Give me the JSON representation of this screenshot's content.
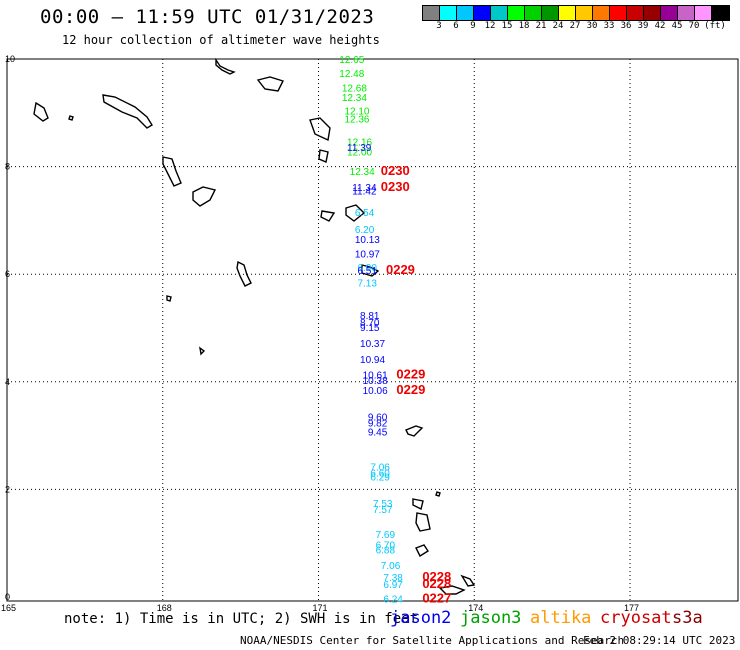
{
  "header": {
    "title": "00:00 – 11:59 UTC 01/31/2023",
    "subtitle": "12 hour collection of altimeter wave heights"
  },
  "colorbar": {
    "colors": [
      "#808080",
      "#00ffff",
      "#00c8ff",
      "#0000ff",
      "#00c8c8",
      "#00ff00",
      "#00d200",
      "#009600",
      "#ffff00",
      "#ffc800",
      "#ff7800",
      "#ff0000",
      "#c80000",
      "#960000",
      "#960096",
      "#c864c8",
      "#ff96ff",
      "#000000"
    ],
    "labels": [
      "3",
      "6",
      "9",
      "12",
      "15",
      "18",
      "21",
      "24",
      "27",
      "30",
      "33",
      "36",
      "39",
      "42",
      "45",
      "70",
      "(ft)"
    ]
  },
  "map": {
    "x_axis_labels": [
      "165",
      "168",
      "171",
      "174",
      "177"
    ],
    "y_axis_labels": [
      "10",
      "8",
      "6",
      "4",
      "2",
      "0"
    ],
    "observations": [
      {
        "v": "12.65",
        "x": 171.4,
        "y": 9.93,
        "c": "#00ee00"
      },
      {
        "v": "12.48",
        "x": 171.4,
        "y": 9.67,
        "c": "#00ee00"
      },
      {
        "v": "12.68",
        "x": 171.45,
        "y": 9.4,
        "c": "#00ee00"
      },
      {
        "v": "12.34",
        "x": 171.45,
        "y": 9.22,
        "c": "#00ee00"
      },
      {
        "v": "12.10",
        "x": 171.5,
        "y": 8.97,
        "c": "#00ee00"
      },
      {
        "v": "12.36",
        "x": 171.5,
        "y": 8.82,
        "c": "#00ee00"
      },
      {
        "v": "12.16",
        "x": 171.55,
        "y": 8.39,
        "c": "#00ee00"
      },
      {
        "v": "12.00",
        "x": 171.55,
        "y": 8.21,
        "c": "#00ee00"
      },
      {
        "v": "11.39",
        "x": 171.55,
        "y": 8.29,
        "c": "#0000ff"
      },
      {
        "v": "12.34",
        "x": 171.6,
        "y": 7.84,
        "c": "#00ee00"
      },
      {
        "v": "11.34",
        "x": 171.65,
        "y": 7.55,
        "c": "#0000ff"
      },
      {
        "v": "11.42",
        "x": 171.65,
        "y": 7.48,
        "c": "#0000ff"
      },
      {
        "v": "6.54",
        "x": 171.7,
        "y": 7.08,
        "c": "#00c8ff"
      },
      {
        "v": "6.20",
        "x": 171.7,
        "y": 6.77,
        "c": "#00c8ff"
      },
      {
        "v": "10.13",
        "x": 171.7,
        "y": 6.58,
        "c": "#0000ff"
      },
      {
        "v": "10.97",
        "x": 171.7,
        "y": 6.31,
        "c": "#0000ff"
      },
      {
        "v": "6.90",
        "x": 171.75,
        "y": 6.06,
        "c": "#00c8ff"
      },
      {
        "v": "6.51",
        "x": 171.75,
        "y": 6.0,
        "c": "#0000ff"
      },
      {
        "v": "7.13",
        "x": 171.75,
        "y": 5.77,
        "c": "#00c8ff"
      },
      {
        "v": "8.81",
        "x": 171.8,
        "y": 5.17,
        "c": "#0000ff"
      },
      {
        "v": "8.70",
        "x": 171.8,
        "y": 5.04,
        "c": "#0000ff"
      },
      {
        "v": "9.15",
        "x": 171.8,
        "y": 4.94,
        "c": "#0000ff"
      },
      {
        "v": "10.37",
        "x": 171.8,
        "y": 4.65,
        "c": "#0000ff"
      },
      {
        "v": "10.94",
        "x": 171.8,
        "y": 4.35,
        "c": "#0000ff"
      },
      {
        "v": "10.61",
        "x": 171.85,
        "y": 4.06,
        "c": "#0000ff"
      },
      {
        "v": "10.38",
        "x": 171.85,
        "y": 3.96,
        "c": "#0000ff"
      },
      {
        "v": "10.06",
        "x": 171.85,
        "y": 3.77,
        "c": "#0000ff"
      },
      {
        "v": "9.60",
        "x": 171.95,
        "y": 3.28,
        "c": "#0000ff"
      },
      {
        "v": "9.82",
        "x": 171.95,
        "y": 3.17,
        "c": "#0000ff"
      },
      {
        "v": "9.45",
        "x": 171.95,
        "y": 3.0,
        "c": "#0000ff"
      },
      {
        "v": "7.06",
        "x": 172.0,
        "y": 2.35,
        "c": "#00c8ff"
      },
      {
        "v": "6.60",
        "x": 172.0,
        "y": 2.24,
        "c": "#00c8ff"
      },
      {
        "v": "6.29",
        "x": 172.0,
        "y": 2.17,
        "c": "#00c8ff"
      },
      {
        "v": "7.53",
        "x": 172.05,
        "y": 1.67,
        "c": "#00c8ff"
      },
      {
        "v": "7.57",
        "x": 172.05,
        "y": 1.56,
        "c": "#00c8ff"
      },
      {
        "v": "7.69",
        "x": 172.1,
        "y": 1.1,
        "c": "#00c8ff"
      },
      {
        "v": "6.70",
        "x": 172.1,
        "y": 0.9,
        "c": "#00c8ff"
      },
      {
        "v": "6.88",
        "x": 172.1,
        "y": 0.81,
        "c": "#00c8ff"
      },
      {
        "v": "7.06",
        "x": 172.2,
        "y": 0.52,
        "c": "#00c8ff"
      },
      {
        "v": "7.38",
        "x": 172.25,
        "y": 0.3,
        "c": "#00c8ff"
      },
      {
        "v": "6.97",
        "x": 172.25,
        "y": 0.17,
        "c": "#00c8ff"
      },
      {
        "v": "6.24",
        "x": 172.25,
        "y": -0.1,
        "c": "#00c8ff"
      }
    ],
    "time_tags": [
      {
        "v": "0230",
        "x": 172.2,
        "y": 7.84,
        "c": "#ee0000"
      },
      {
        "v": "0230",
        "x": 172.2,
        "y": 7.55,
        "c": "#ee0000"
      },
      {
        "v": "0229",
        "x": 172.3,
        "y": 6.0,
        "c": "#ee0000"
      },
      {
        "v": "0229",
        "x": 172.5,
        "y": 4.06,
        "c": "#ee0000"
      },
      {
        "v": "0229",
        "x": 172.5,
        "y": 3.77,
        "c": "#ee0000"
      },
      {
        "v": "0228",
        "x": 173.0,
        "y": 0.3,
        "c": "#ee0000"
      },
      {
        "v": "0228",
        "x": 173.0,
        "y": 0.17,
        "c": "#ee0000"
      },
      {
        "v": "0227",
        "x": 173.0,
        "y": -0.1,
        "c": "#ee0000"
      }
    ]
  },
  "footer": {
    "note": "note: 1) Time is in UTC; 2) SWH is in feet",
    "missions": [
      {
        "name": "jason2",
        "color": "#0000ee"
      },
      {
        "name": "jason3",
        "color": "#00a000"
      },
      {
        "name": "altika",
        "color": "#ff9900"
      },
      {
        "name": "cryosat",
        "color": "#cc0000"
      },
      {
        "name": "s3a",
        "color": "#880000"
      }
    ],
    "credit": "NOAA/NESDIS Center for Satellite Applications and Research",
    "date": "Feb  2 08:29:14 UTC 2023"
  }
}
